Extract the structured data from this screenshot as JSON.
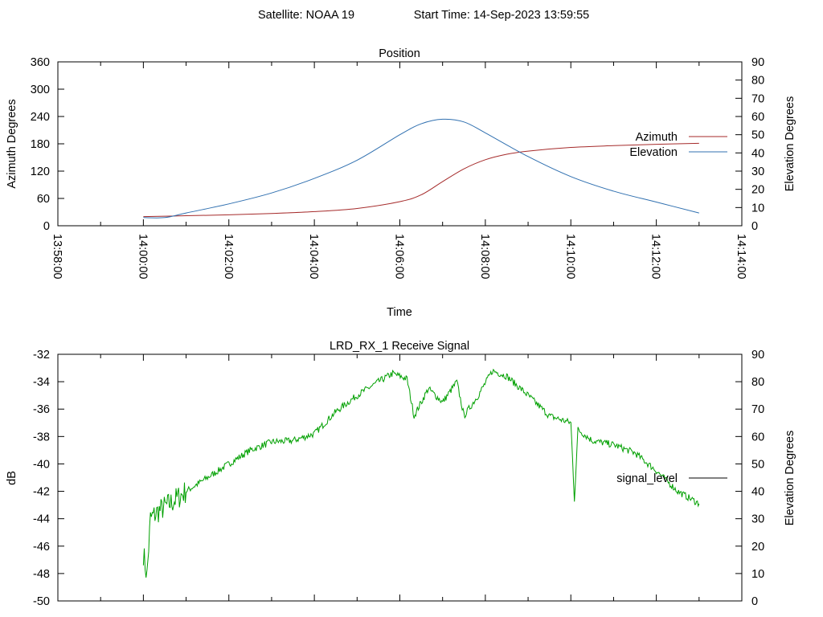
{
  "header": {
    "satellite": "Satellite: NOAA 19",
    "start_time": "Start Time: 14-Sep-2023 13:59:55"
  },
  "chart_data": [
    {
      "type": "line",
      "title": "Position",
      "xlabel": "Time",
      "ylabel": "Azimuth Degrees",
      "y2label": "Elevation Degrees",
      "xlim": [
        "13:58:00",
        "14:14:00"
      ],
      "xticks": [
        "13:58:00",
        "14:00:00",
        "14:02:00",
        "14:04:00",
        "14:06:00",
        "14:08:00",
        "14:10:00",
        "14:12:00",
        "14:14:00"
      ],
      "ylim": [
        0,
        360
      ],
      "yticks": [
        0,
        60,
        120,
        180,
        240,
        300,
        360
      ],
      "y2lim": [
        0,
        90
      ],
      "y2ticks": [
        0,
        10,
        20,
        30,
        40,
        50,
        60,
        70,
        80,
        90
      ],
      "legend_position": "right",
      "series": [
        {
          "name": "Azimuth",
          "axis": "left",
          "color": "#a52a2a",
          "x": [
            "14:00:00",
            "14:01:00",
            "14:02:00",
            "14:03:00",
            "14:04:00",
            "14:05:00",
            "14:06:00",
            "14:06:30",
            "14:07:00",
            "14:07:30",
            "14:08:00",
            "14:08:30",
            "14:09:00",
            "14:10:00",
            "14:11:00",
            "14:12:00",
            "14:13:00"
          ],
          "values": [
            20,
            22,
            24,
            27,
            31,
            38,
            53,
            68,
            97,
            125,
            145,
            157,
            164,
            172,
            176,
            179,
            181
          ]
        },
        {
          "name": "Elevation",
          "axis": "right",
          "color": "#3070b0",
          "x": [
            "14:00:00",
            "14:00:30",
            "14:01:00",
            "14:02:00",
            "14:03:00",
            "14:04:00",
            "14:05:00",
            "14:06:00",
            "14:06:30",
            "14:07:00",
            "14:07:30",
            "14:08:00",
            "14:09:00",
            "14:10:00",
            "14:11:00",
            "14:12:00",
            "14:13:00"
          ],
          "values": [
            4.5,
            4.5,
            7,
            12,
            18,
            26,
            36,
            50,
            56,
            58.5,
            57,
            51,
            38,
            27,
            19,
            13,
            7
          ]
        }
      ]
    },
    {
      "type": "line",
      "title": "LRD_RX_1 Receive Signal",
      "ylabel": "dB",
      "y2label": "Elevation Degrees",
      "xlim": [
        "13:58:00",
        "14:14:00"
      ],
      "ylim": [
        -50,
        -32
      ],
      "yticks": [
        -50,
        -48,
        -46,
        -44,
        -42,
        -40,
        -38,
        -36,
        -34,
        -32
      ],
      "y2lim": [
        0,
        90
      ],
      "y2ticks": [
        0,
        10,
        20,
        30,
        40,
        50,
        60,
        70,
        80,
        90
      ],
      "legend_position": "right",
      "series": [
        {
          "name": "signal_level",
          "axis": "left",
          "color": "#00a000",
          "x": [
            "14:00:00",
            "14:00:05",
            "14:00:10",
            "14:00:20",
            "14:00:40",
            "14:01:00",
            "14:01:30",
            "14:02:00",
            "14:02:30",
            "14:03:00",
            "14:03:30",
            "14:04:00",
            "14:04:30",
            "14:05:00",
            "14:05:30",
            "14:05:50",
            "14:06:10",
            "14:06:20",
            "14:06:40",
            "14:07:00",
            "14:07:20",
            "14:07:30",
            "14:07:50",
            "14:08:10",
            "14:08:30",
            "14:09:00",
            "14:09:30",
            "14:10:00",
            "14:10:05",
            "14:10:10",
            "14:10:30",
            "14:11:00",
            "14:11:30",
            "14:12:00",
            "14:12:30",
            "14:13:00"
          ],
          "values": [
            -46.5,
            -48.2,
            -44,
            -43.5,
            -42.8,
            -42,
            -41,
            -40,
            -39,
            -38.4,
            -38.3,
            -37.8,
            -36.2,
            -35,
            -34,
            -33.4,
            -33.8,
            -36.5,
            -34.5,
            -35.5,
            -34,
            -36.5,
            -35,
            -33.2,
            -33.6,
            -35,
            -36.5,
            -37,
            -42.6,
            -37.5,
            -38.3,
            -38.6,
            -39.2,
            -40.5,
            -42,
            -42.9
          ]
        }
      ]
    }
  ]
}
